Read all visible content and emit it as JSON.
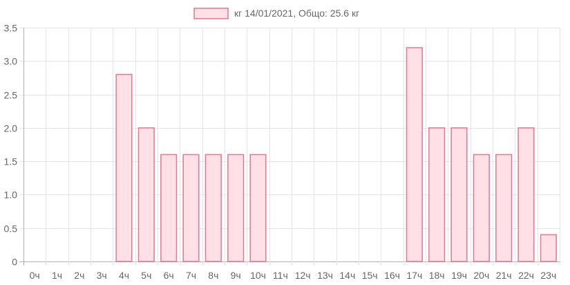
{
  "chart_data": {
    "type": "bar",
    "categories": [
      "0ч",
      "1ч",
      "2ч",
      "3ч",
      "4ч",
      "5ч",
      "6ч",
      "7ч",
      "8ч",
      "9ч",
      "10ч",
      "11ч",
      "12ч",
      "13ч",
      "14ч",
      "15ч",
      "16ч",
      "17ч",
      "18ч",
      "19ч",
      "20ч",
      "21ч",
      "22ч",
      "23ч"
    ],
    "series": [
      {
        "name": "кг 14/01/2021, Общо: 25.6 кг",
        "values": [
          0,
          0,
          0,
          0,
          2.8,
          2.0,
          1.6,
          1.6,
          1.6,
          1.6,
          1.6,
          0,
          0,
          0,
          0,
          0,
          0,
          3.2,
          2.0,
          2.0,
          1.6,
          1.6,
          2.0,
          0.4
        ]
      }
    ],
    "yticks": [
      "0",
      "0.5",
      "1.0",
      "1.5",
      "2.0",
      "2.5",
      "3.0",
      "3.5"
    ],
    "ylim": [
      0,
      3.5
    ],
    "grid": true,
    "legend_position": "top-center",
    "title": "",
    "xlabel": "",
    "ylabel": ""
  },
  "colors": {
    "bar_fill": "#ffe0e6",
    "bar_stroke": "#e8758f",
    "grid": "#e5e5e5",
    "axis": "#b0b0b0",
    "text": "#666666"
  }
}
